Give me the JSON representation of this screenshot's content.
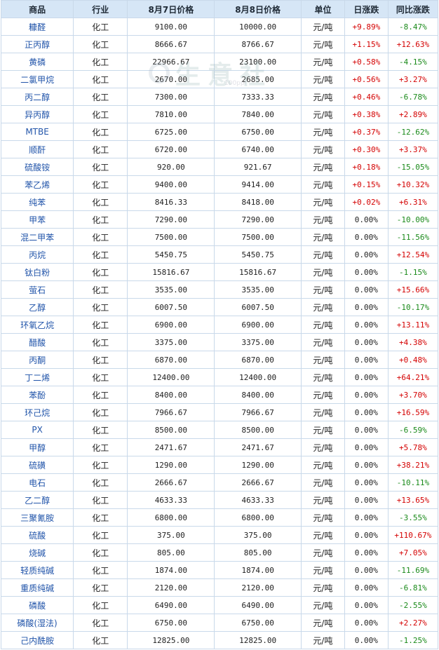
{
  "watermark": {
    "brand": "生意社",
    "url": "100ppi"
  },
  "table": {
    "headers": {
      "name": "商品",
      "industry": "行业",
      "price1": "8月7日价格",
      "price2": "8月8日价格",
      "unit": "单位",
      "daily": "日涨跌",
      "yoy": "同比涨跌"
    },
    "rows": [
      {
        "name": "糠醛",
        "industry": "化工",
        "p1": "9100.00",
        "p2": "10000.00",
        "unit": "元/吨",
        "daily": "+9.89%",
        "yoy": "-8.47%"
      },
      {
        "name": "正丙醇",
        "industry": "化工",
        "p1": "8666.67",
        "p2": "8766.67",
        "unit": "元/吨",
        "daily": "+1.15%",
        "yoy": "+12.63%"
      },
      {
        "name": "黄磷",
        "industry": "化工",
        "p1": "22966.67",
        "p2": "23100.00",
        "unit": "元/吨",
        "daily": "+0.58%",
        "yoy": "-4.15%"
      },
      {
        "name": "二氯甲烷",
        "industry": "化工",
        "p1": "2670.00",
        "p2": "2685.00",
        "unit": "元/吨",
        "daily": "+0.56%",
        "yoy": "+3.27%"
      },
      {
        "name": "丙二醇",
        "industry": "化工",
        "p1": "7300.00",
        "p2": "7333.33",
        "unit": "元/吨",
        "daily": "+0.46%",
        "yoy": "-6.78%"
      },
      {
        "name": "异丙醇",
        "industry": "化工",
        "p1": "7810.00",
        "p2": "7840.00",
        "unit": "元/吨",
        "daily": "+0.38%",
        "yoy": "+2.89%"
      },
      {
        "name": "MTBE",
        "industry": "化工",
        "p1": "6725.00",
        "p2": "6750.00",
        "unit": "元/吨",
        "daily": "+0.37%",
        "yoy": "-12.62%"
      },
      {
        "name": "顺酐",
        "industry": "化工",
        "p1": "6720.00",
        "p2": "6740.00",
        "unit": "元/吨",
        "daily": "+0.30%",
        "yoy": "+3.37%"
      },
      {
        "name": "硫酸铵",
        "industry": "化工",
        "p1": "920.00",
        "p2": "921.67",
        "unit": "元/吨",
        "daily": "+0.18%",
        "yoy": "-15.05%"
      },
      {
        "name": "苯乙烯",
        "industry": "化工",
        "p1": "9400.00",
        "p2": "9414.00",
        "unit": "元/吨",
        "daily": "+0.15%",
        "yoy": "+10.32%"
      },
      {
        "name": "纯苯",
        "industry": "化工",
        "p1": "8416.33",
        "p2": "8418.00",
        "unit": "元/吨",
        "daily": "+0.02%",
        "yoy": "+6.31%"
      },
      {
        "name": "甲苯",
        "industry": "化工",
        "p1": "7290.00",
        "p2": "7290.00",
        "unit": "元/吨",
        "daily": "0.00%",
        "yoy": "-10.00%"
      },
      {
        "name": "混二甲苯",
        "industry": "化工",
        "p1": "7500.00",
        "p2": "7500.00",
        "unit": "元/吨",
        "daily": "0.00%",
        "yoy": "-11.56%"
      },
      {
        "name": "丙烷",
        "industry": "化工",
        "p1": "5450.75",
        "p2": "5450.75",
        "unit": "元/吨",
        "daily": "0.00%",
        "yoy": "+12.54%"
      },
      {
        "name": "钛白粉",
        "industry": "化工",
        "p1": "15816.67",
        "p2": "15816.67",
        "unit": "元/吨",
        "daily": "0.00%",
        "yoy": "-1.15%"
      },
      {
        "name": "萤石",
        "industry": "化工",
        "p1": "3535.00",
        "p2": "3535.00",
        "unit": "元/吨",
        "daily": "0.00%",
        "yoy": "+15.66%"
      },
      {
        "name": "乙醇",
        "industry": "化工",
        "p1": "6007.50",
        "p2": "6007.50",
        "unit": "元/吨",
        "daily": "0.00%",
        "yoy": "-10.17%"
      },
      {
        "name": "环氧乙烷",
        "industry": "化工",
        "p1": "6900.00",
        "p2": "6900.00",
        "unit": "元/吨",
        "daily": "0.00%",
        "yoy": "+13.11%"
      },
      {
        "name": "醋酸",
        "industry": "化工",
        "p1": "3375.00",
        "p2": "3375.00",
        "unit": "元/吨",
        "daily": "0.00%",
        "yoy": "+4.38%"
      },
      {
        "name": "丙酮",
        "industry": "化工",
        "p1": "6870.00",
        "p2": "6870.00",
        "unit": "元/吨",
        "daily": "0.00%",
        "yoy": "+0.48%"
      },
      {
        "name": "丁二烯",
        "industry": "化工",
        "p1": "12400.00",
        "p2": "12400.00",
        "unit": "元/吨",
        "daily": "0.00%",
        "yoy": "+64.21%"
      },
      {
        "name": "苯酚",
        "industry": "化工",
        "p1": "8400.00",
        "p2": "8400.00",
        "unit": "元/吨",
        "daily": "0.00%",
        "yoy": "+3.70%"
      },
      {
        "name": "环己烷",
        "industry": "化工",
        "p1": "7966.67",
        "p2": "7966.67",
        "unit": "元/吨",
        "daily": "0.00%",
        "yoy": "+16.59%"
      },
      {
        "name": "PX",
        "industry": "化工",
        "p1": "8500.00",
        "p2": "8500.00",
        "unit": "元/吨",
        "daily": "0.00%",
        "yoy": "-6.59%"
      },
      {
        "name": "甲醇",
        "industry": "化工",
        "p1": "2471.67",
        "p2": "2471.67",
        "unit": "元/吨",
        "daily": "0.00%",
        "yoy": "+5.78%"
      },
      {
        "name": "硫磺",
        "industry": "化工",
        "p1": "1290.00",
        "p2": "1290.00",
        "unit": "元/吨",
        "daily": "0.00%",
        "yoy": "+38.21%"
      },
      {
        "name": "电石",
        "industry": "化工",
        "p1": "2666.67",
        "p2": "2666.67",
        "unit": "元/吨",
        "daily": "0.00%",
        "yoy": "-10.11%"
      },
      {
        "name": "乙二醇",
        "industry": "化工",
        "p1": "4633.33",
        "p2": "4633.33",
        "unit": "元/吨",
        "daily": "0.00%",
        "yoy": "+13.65%"
      },
      {
        "name": "三聚氰胺",
        "industry": "化工",
        "p1": "6800.00",
        "p2": "6800.00",
        "unit": "元/吨",
        "daily": "0.00%",
        "yoy": "-3.55%"
      },
      {
        "name": "硫酸",
        "industry": "化工",
        "p1": "375.00",
        "p2": "375.00",
        "unit": "元/吨",
        "daily": "0.00%",
        "yoy": "+110.67%"
      },
      {
        "name": "烧碱",
        "industry": "化工",
        "p1": "805.00",
        "p2": "805.00",
        "unit": "元/吨",
        "daily": "0.00%",
        "yoy": "+7.05%"
      },
      {
        "name": "轻质纯碱",
        "industry": "化工",
        "p1": "1874.00",
        "p2": "1874.00",
        "unit": "元/吨",
        "daily": "0.00%",
        "yoy": "-11.69%"
      },
      {
        "name": "重质纯碱",
        "industry": "化工",
        "p1": "2120.00",
        "p2": "2120.00",
        "unit": "元/吨",
        "daily": "0.00%",
        "yoy": "-6.81%"
      },
      {
        "name": "磷酸",
        "industry": "化工",
        "p1": "6490.00",
        "p2": "6490.00",
        "unit": "元/吨",
        "daily": "0.00%",
        "yoy": "-2.55%"
      },
      {
        "name": "磷酸(湿法)",
        "industry": "化工",
        "p1": "6750.00",
        "p2": "6750.00",
        "unit": "元/吨",
        "daily": "0.00%",
        "yoy": "+2.27%"
      },
      {
        "name": "己内酰胺",
        "industry": "化工",
        "p1": "12825.00",
        "p2": "12825.00",
        "unit": "元/吨",
        "daily": "0.00%",
        "yoy": "-1.25%"
      }
    ]
  },
  "colors": {
    "up": "#d40000",
    "down": "#1a8a1a",
    "header_bg": "#d6e6f6",
    "border": "#c9d9ea",
    "link": "#2255aa"
  }
}
